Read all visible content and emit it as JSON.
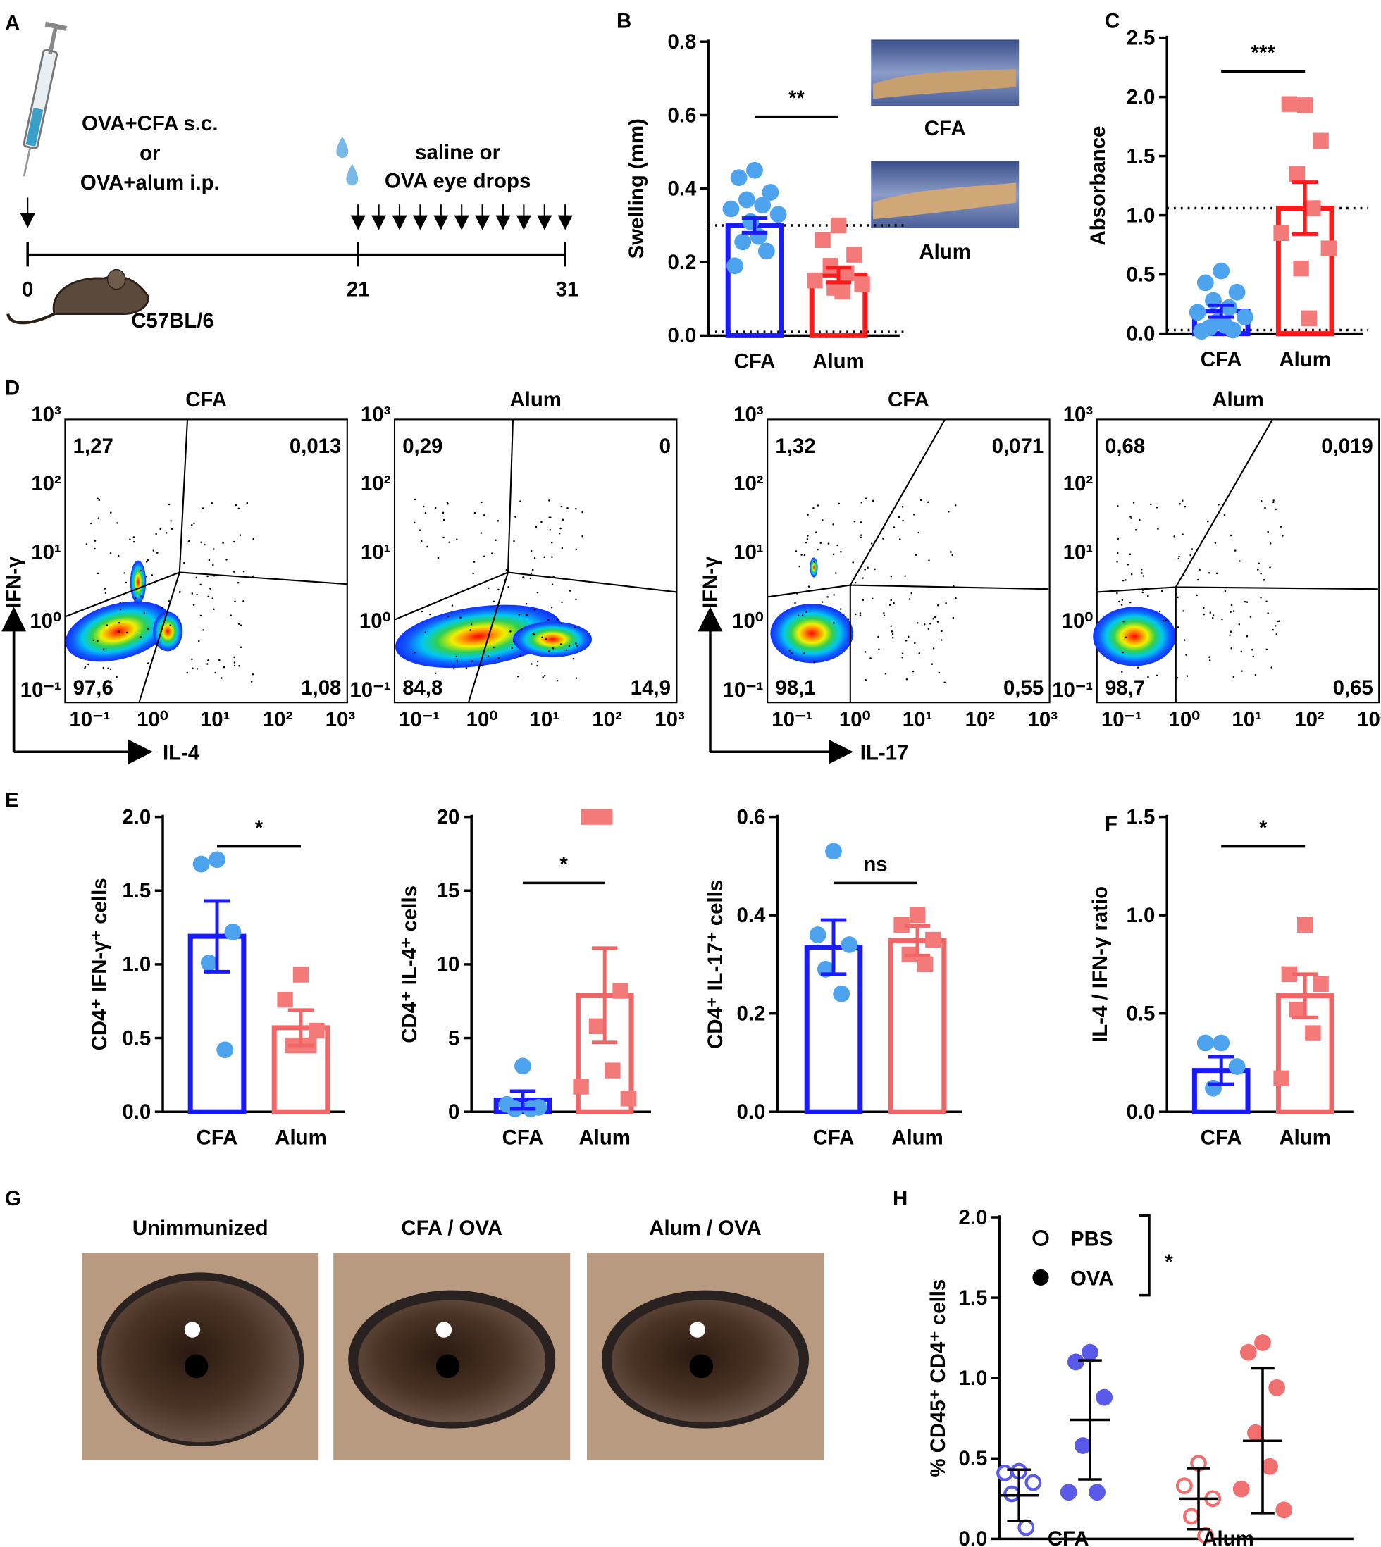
{
  "panel_labels": [
    "A",
    "B",
    "C",
    "D",
    "E",
    "F",
    "G",
    "H"
  ],
  "timeline": {
    "immunization": [
      "OVA+CFA s.c.",
      "or",
      "OVA+alum i.p."
    ],
    "challenge": [
      "saline or",
      "OVA eye drops"
    ],
    "days": [
      "0",
      "21",
      "31"
    ],
    "strain": "C57BL/6"
  },
  "paw_photos": [
    "CFA",
    "Alum"
  ],
  "flow": {
    "plots": [
      {
        "title": "CFA",
        "quadrants": [
          "1,27",
          "0,013",
          "97,6",
          "1,08"
        ]
      },
      {
        "title": "Alum",
        "quadrants": [
          "0,29",
          "0",
          "84,8",
          "14,9"
        ]
      },
      {
        "title": "CFA",
        "quadrants": [
          "1,32",
          "0,071",
          "98,1",
          "0,55"
        ]
      },
      {
        "title": "Alum",
        "quadrants": [
          "0,68",
          "0,019",
          "98,7",
          "0,65"
        ]
      }
    ],
    "y_label": "IFN-γ",
    "x_labels": [
      "IL-4",
      "IL-17"
    ],
    "ticks": [
      "10⁻¹",
      "10⁰",
      "10¹",
      "10²",
      "10³"
    ]
  },
  "eye_photos": [
    "Unimmunized",
    "CFA / OVA",
    "Alum / OVA"
  ],
  "chart_data": [
    {
      "type": "bar",
      "y_label": "Swelling (mm)",
      "categories": [
        "CFA",
        "Alum"
      ],
      "values": [
        0.3,
        0.165
      ],
      "errors": [
        0.02,
        0.02
      ],
      "points": [
        [
          0.45,
          0.43,
          0.39,
          0.37,
          0.355,
          0.345,
          0.33,
          0.31,
          0.27,
          0.255,
          0.23,
          0.19
        ],
        [
          0.3,
          0.26,
          0.22,
          0.19,
          0.17,
          0.15,
          0.14,
          0.13,
          0.12
        ]
      ],
      "colors": [
        "#1a1aff",
        "#ff1a1a"
      ],
      "point_colors": [
        "#4ea3ee",
        "#f47a7a"
      ],
      "markers": [
        "circle",
        "square"
      ],
      "ylim": [
        0,
        0.8
      ],
      "yticks": [
        {
          "value": 0,
          "label": "0.0"
        },
        0.2,
        0.4,
        0.6,
        0.8
      ],
      "reference_lines": [
        0.3,
        0.01
      ],
      "significance": "**"
    },
    {
      "type": "bar",
      "y_label": "Absorbance",
      "categories": [
        "CFA",
        "Alum"
      ],
      "values": [
        0.19,
        1.06
      ],
      "errors": [
        0.05,
        0.22
      ],
      "points": [
        [
          0.53,
          0.43,
          0.35,
          0.28,
          0.22,
          0.18,
          0.14,
          0.1,
          0.07,
          0.05,
          0.03,
          0.02
        ],
        [
          1.93,
          1.94,
          1.63,
          1.35,
          1.06,
          0.85,
          0.72,
          0.55,
          0.13
        ]
      ],
      "colors": [
        "#1a1aff",
        "#ff1a1a"
      ],
      "point_colors": [
        "#4ea3ee",
        "#f47a7a"
      ],
      "markers": [
        "circle",
        "square"
      ],
      "ylim": [
        0,
        2.5
      ],
      "yticks": [
        {
          "value": 0,
          "label": "0.0"
        },
        0.5,
        {
          "value": 1,
          "label": "1.0"
        },
        1.5,
        {
          "value": 2,
          "label": "2.0"
        },
        2.5
      ],
      "reference_lines": [
        1.06,
        0.03
      ],
      "significance": "***"
    },
    {
      "type": "bar",
      "y_label": "CD4⁺ IFN-γ⁺ cells",
      "categories": [
        "CFA",
        "Alum"
      ],
      "values": [
        1.19,
        0.57
      ],
      "errors": [
        0.24,
        0.12
      ],
      "points": [
        [
          1.71,
          1.68,
          1.22,
          1.01,
          0.42
        ],
        [
          0.93,
          0.76,
          0.55,
          0.45,
          0.45
        ]
      ],
      "colors": [
        "#1a1aff",
        "#f06666"
      ],
      "point_colors": [
        "#4ea3ee",
        "#f47a7a"
      ],
      "markers": [
        "circle",
        "square"
      ],
      "ylim": [
        0,
        2
      ],
      "yticks": [
        {
          "value": 0,
          "label": "0.0"
        },
        0.5,
        {
          "value": 1,
          "label": "1.0"
        },
        1.5,
        {
          "value": 2,
          "label": "2.0"
        }
      ],
      "significance": "*"
    },
    {
      "type": "bar",
      "y_label": "CD4⁺ IL-4⁺ cells",
      "categories": [
        "CFA",
        "Alum"
      ],
      "values": [
        0.8,
        7.9
      ],
      "errors": [
        0.6,
        3.2
      ],
      "points": [
        [
          3.1,
          0.5,
          0.3,
          0.2,
          0.2
        ],
        [
          20,
          20,
          8.2,
          5.8,
          2.8,
          1.7,
          0.9
        ]
      ],
      "colors": [
        "#1a1aff",
        "#f06666"
      ],
      "point_colors": [
        "#4ea3ee",
        "#f47a7a"
      ],
      "markers": [
        "circle",
        "square"
      ],
      "ylim": [
        0,
        20
      ],
      "yticks": [
        0,
        5,
        10,
        15,
        20
      ],
      "significance": "*"
    },
    {
      "type": "bar",
      "y_label": "CD4⁺ IL-17⁺ cells",
      "categories": [
        "CFA",
        "Alum"
      ],
      "values": [
        0.335,
        0.348
      ],
      "errors": [
        0.055,
        0.03
      ],
      "points": [
        [
          0.53,
          0.36,
          0.34,
          0.29,
          0.24
        ],
        [
          0.4,
          0.38,
          0.35,
          0.32,
          0.3
        ]
      ],
      "colors": [
        "#1a1aff",
        "#f06666"
      ],
      "point_colors": [
        "#4ea3ee",
        "#f47a7a"
      ],
      "markers": [
        "circle",
        "square"
      ],
      "ylim": [
        0,
        0.6
      ],
      "yticks": [
        {
          "value": 0,
          "label": "0.0"
        },
        0.2,
        0.4,
        0.6
      ],
      "significance": "ns"
    },
    {
      "type": "bar",
      "y_label": "IL-4 / IFN-γ ratio",
      "categories": [
        "CFA",
        "Alum"
      ],
      "values": [
        0.21,
        0.59
      ],
      "errors": [
        0.07,
        0.11
      ],
      "points": [
        [
          0.35,
          0.35,
          0.23,
          0.12
        ],
        [
          0.95,
          0.7,
          0.65,
          0.52,
          0.4,
          0.17
        ]
      ],
      "colors": [
        "#1a1aff",
        "#f06666"
      ],
      "point_colors": [
        "#4ea3ee",
        "#f47a7a"
      ],
      "markers": [
        "circle",
        "square"
      ],
      "ylim": [
        0,
        1.5
      ],
      "yticks": [
        {
          "value": 0,
          "label": "0.0"
        },
        0.5,
        {
          "value": 1,
          "label": "1.0"
        },
        1.5
      ],
      "significance": "*"
    },
    {
      "type": "dot",
      "y_label": "% CD45⁺ CD4⁺ cells",
      "categories": [
        "CFA",
        "Alum"
      ],
      "series": [
        {
          "name": "PBS",
          "values": [
            0.27,
            0.25
          ],
          "errors": [
            0.16,
            0.19
          ],
          "points": [
            [
              0.42,
              0.41,
              0.35,
              0.28,
              0.07
            ],
            [
              0.47,
              0.33,
              0.25,
              0.14,
              0.02
            ]
          ]
        },
        {
          "name": "OVA",
          "values": [
            0.74,
            0.61
          ],
          "errors": [
            0.37,
            0.45
          ],
          "points": [
            [
              1.16,
              1.1,
              0.88,
              0.58,
              0.29,
              0.29
            ],
            [
              1.22,
              1.16,
              0.94,
              0.66,
              0.45,
              0.31,
              0.18
            ]
          ]
        }
      ],
      "colors": [
        "#5a5ae8",
        "#f07070"
      ],
      "ylim": [
        0,
        2
      ],
      "yticks": [
        {
          "value": 0,
          "label": "0.0"
        },
        0.5,
        {
          "value": 1,
          "label": "1.0"
        },
        1.5,
        {
          "value": 2,
          "label": "2.0"
        }
      ],
      "significance": "*"
    }
  ]
}
